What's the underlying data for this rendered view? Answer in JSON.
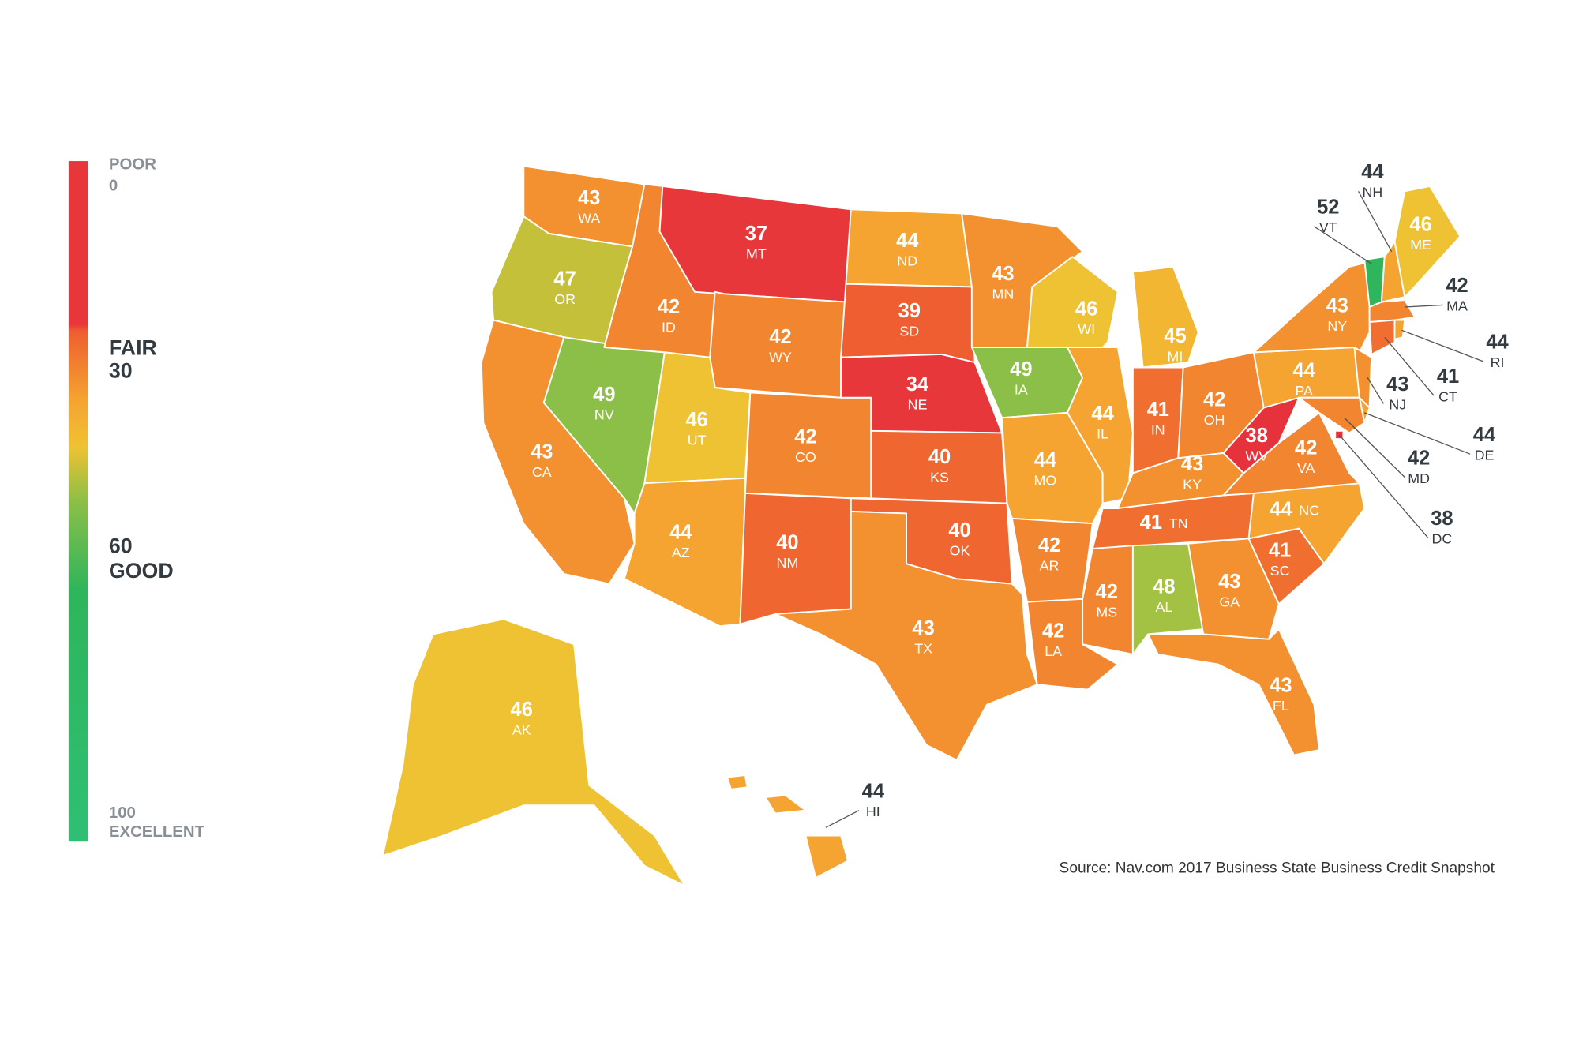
{
  "map": {
    "states": [
      {
        "abbr": "WA",
        "value": 43,
        "color": "#f39130"
      },
      {
        "abbr": "OR",
        "value": 47,
        "color": "#c4c03a"
      },
      {
        "abbr": "CA",
        "value": 43,
        "color": "#f39130"
      },
      {
        "abbr": "NV",
        "value": 49,
        "color": "#8cbf47"
      },
      {
        "abbr": "ID",
        "value": 42,
        "color": "#f2852f"
      },
      {
        "abbr": "MT",
        "value": 37,
        "color": "#e8373a"
      },
      {
        "abbr": "WY",
        "value": 42,
        "color": "#f2852f"
      },
      {
        "abbr": "UT",
        "value": 46,
        "color": "#efc233"
      },
      {
        "abbr": "CO",
        "value": 42,
        "color": "#f2852f"
      },
      {
        "abbr": "AZ",
        "value": 44,
        "color": "#f5a331"
      },
      {
        "abbr": "NM",
        "value": 40,
        "color": "#ef6630"
      },
      {
        "abbr": "ND",
        "value": 44,
        "color": "#f5a331"
      },
      {
        "abbr": "SD",
        "value": 39,
        "color": "#ee5e30"
      },
      {
        "abbr": "NE",
        "value": 34,
        "color": "#e8373a"
      },
      {
        "abbr": "KS",
        "value": 40,
        "color": "#ef6630"
      },
      {
        "abbr": "OK",
        "value": 40,
        "color": "#ef6630"
      },
      {
        "abbr": "TX",
        "value": 43,
        "color": "#f39130"
      },
      {
        "abbr": "MN",
        "value": 43,
        "color": "#f39130"
      },
      {
        "abbr": "IA",
        "value": 49,
        "color": "#8cbf47"
      },
      {
        "abbr": "MO",
        "value": 44,
        "color": "#f5a331"
      },
      {
        "abbr": "AR",
        "value": 42,
        "color": "#f2852f"
      },
      {
        "abbr": "LA",
        "value": 42,
        "color": "#f2852f"
      },
      {
        "abbr": "WI",
        "value": 46,
        "color": "#efc233"
      },
      {
        "abbr": "IL",
        "value": 44,
        "color": "#f5a331"
      },
      {
        "abbr": "MI",
        "value": 45,
        "color": "#f3b632"
      },
      {
        "abbr": "IN",
        "value": 41,
        "color": "#f06f30"
      },
      {
        "abbr": "OH",
        "value": 42,
        "color": "#f2852f"
      },
      {
        "abbr": "KY",
        "value": 43,
        "color": "#f39130"
      },
      {
        "abbr": "TN",
        "value": 41,
        "color": "#f06f30"
      },
      {
        "abbr": "MS",
        "value": 42,
        "color": "#f2852f"
      },
      {
        "abbr": "AL",
        "value": 48,
        "color": "#a3c143"
      },
      {
        "abbr": "GA",
        "value": 43,
        "color": "#f39130"
      },
      {
        "abbr": "FL",
        "value": 43,
        "color": "#f39130"
      },
      {
        "abbr": "SC",
        "value": 41,
        "color": "#f06f30"
      },
      {
        "abbr": "NC",
        "value": 44,
        "color": "#f5a331"
      },
      {
        "abbr": "VA",
        "value": 42,
        "color": "#f2852f"
      },
      {
        "abbr": "WV",
        "value": 38,
        "color": "#e6323b"
      },
      {
        "abbr": "PA",
        "value": 44,
        "color": "#f5a331"
      },
      {
        "abbr": "NY",
        "value": 43,
        "color": "#f39130"
      },
      {
        "abbr": "NJ",
        "value": 43,
        "color": "#f39130"
      },
      {
        "abbr": "DE",
        "value": 44,
        "color": "#f5a331"
      },
      {
        "abbr": "MD",
        "value": 42,
        "color": "#f2852f"
      },
      {
        "abbr": "DC",
        "value": 38,
        "color": "#e6323b"
      },
      {
        "abbr": "VT",
        "value": 52,
        "color": "#2fb55b"
      },
      {
        "abbr": "NH",
        "value": 44,
        "color": "#f5a331"
      },
      {
        "abbr": "ME",
        "value": 46,
        "color": "#efc233"
      },
      {
        "abbr": "MA",
        "value": 42,
        "color": "#f2852f"
      },
      {
        "abbr": "CT",
        "value": 41,
        "color": "#f06f30"
      },
      {
        "abbr": "RI",
        "value": 44,
        "color": "#f5a331"
      },
      {
        "abbr": "AK",
        "value": 46,
        "color": "#efc233"
      },
      {
        "abbr": "HI",
        "value": 44,
        "color": "#f5a331"
      }
    ],
    "legend": {
      "stops": [
        {
          "value": 0,
          "name": "POOR"
        },
        {
          "value": 30,
          "name": "FAIR"
        },
        {
          "value": 60,
          "name": "GOOD"
        },
        {
          "value": 100,
          "name": "EXCELLENT"
        }
      ]
    },
    "source": "Source: Nav.com 2017 Business State Business Credit Snapshot"
  }
}
